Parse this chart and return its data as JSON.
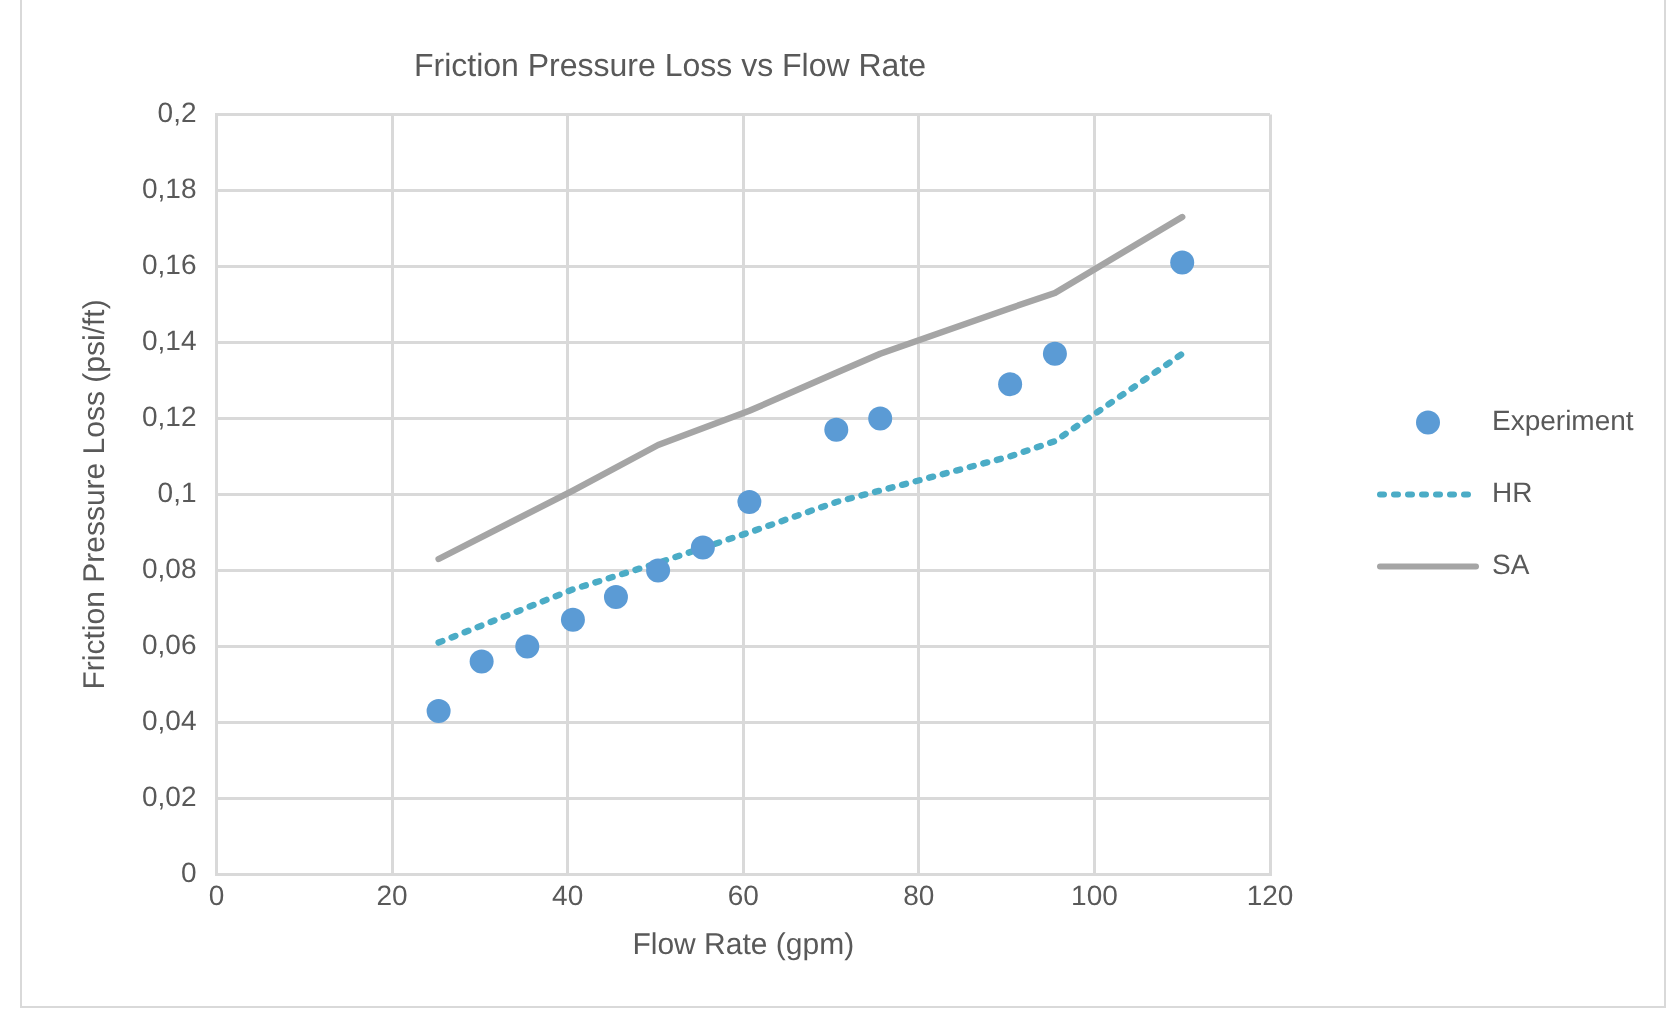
{
  "chart_data": {
    "type": "scatter",
    "title": "Friction Pressure Loss vs Flow Rate",
    "xlabel": "Flow Rate (gpm)",
    "ylabel": "Friction Pressure Loss (psi/ft)",
    "xlim": [
      0,
      120
    ],
    "xticks": [
      0,
      20,
      40,
      60,
      80,
      100,
      120
    ],
    "ylim": [
      0,
      0.2
    ],
    "yticks": [
      0,
      {
        "value": 0.02,
        "label": "0,02"
      },
      {
        "value": 0.04,
        "label": "0,04"
      },
      {
        "value": 0.06,
        "label": "0,06"
      },
      {
        "value": 0.08,
        "label": "0,08"
      },
      {
        "value": 0.1,
        "label": "0,1"
      },
      {
        "value": 0.12,
        "label": "0,12"
      },
      {
        "value": 0.14,
        "label": "0,14"
      },
      {
        "value": 0.16,
        "label": "0,16"
      },
      {
        "value": 0.18,
        "label": "0,18"
      },
      {
        "value": 0.2,
        "label": "0,2"
      }
    ],
    "grid": true,
    "legend": "right",
    "series": [
      {
        "name": "Experiment",
        "marker": "circle",
        "color": "#5b9bd5",
        "x": [
          25.3,
          30.2,
          35.4,
          40.6,
          45.5,
          50.3,
          55.4,
          60.7,
          70.6,
          75.6,
          90.4,
          95.5,
          110
        ],
        "values": [
          0.043,
          0.056,
          0.06,
          0.067,
          0.073,
          0.08,
          0.086,
          0.098,
          0.117,
          0.12,
          0.129,
          0.137,
          0.161
        ]
      },
      {
        "name": "HR",
        "type": "line",
        "marker": "none",
        "line_style": "dotted",
        "color": "#4bacc6",
        "x": [
          25.3,
          40.6,
          50.3,
          60.7,
          70.6,
          75.6,
          90.4,
          95.5,
          110
        ],
        "values": [
          0.061,
          0.075,
          0.082,
          0.09,
          0.098,
          0.101,
          0.11,
          0.114,
          0.137
        ]
      },
      {
        "name": "SA",
        "type": "line",
        "marker": "none",
        "line_style": "solid",
        "color": "#a5a5a5",
        "x": [
          25.3,
          40.6,
          50.3,
          60.7,
          70.6,
          75.6,
          90.4,
          95.5,
          110
        ],
        "values": [
          0.083,
          0.101,
          0.113,
          0.122,
          0.132,
          0.137,
          0.149,
          0.153,
          0.173
        ]
      }
    ]
  }
}
